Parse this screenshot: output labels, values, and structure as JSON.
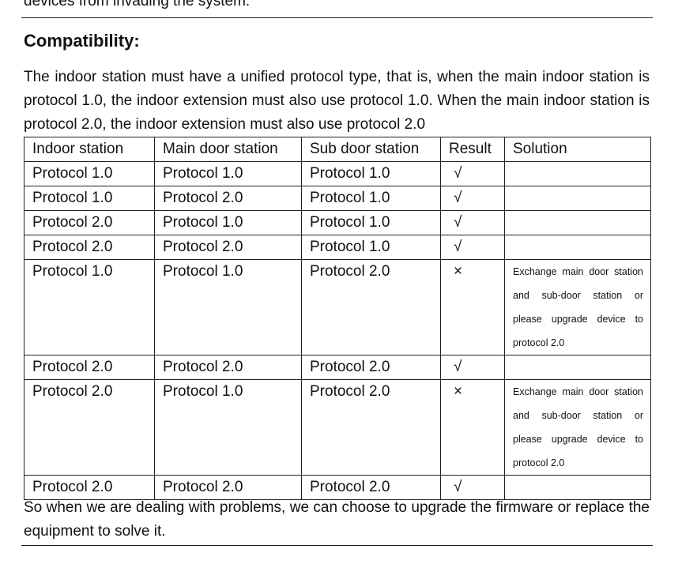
{
  "previous_text": "devices from invading the system.",
  "heading": "Compatibility:",
  "intro": "The indoor station must have a unified protocol type, that is, when the main indoor station is protocol 1.0, the indoor extension must also use protocol 1.0. When the main indoor station is protocol 2.0, the indoor extension must also use protocol 2.0",
  "table": {
    "headers": [
      "Indoor station",
      "Main door station",
      "Sub door station",
      "Result",
      "Solution"
    ],
    "rows": [
      {
        "indoor": "Protocol 1.0",
        "main": "Protocol 1.0",
        "sub": "Protocol 1.0",
        "result": "√",
        "solution": ""
      },
      {
        "indoor": "Protocol 1.0",
        "main": "Protocol 2.0",
        "sub": "Protocol 1.0",
        "result": "√",
        "solution": ""
      },
      {
        "indoor": "Protocol 2.0",
        "main": "Protocol 1.0",
        "sub": "Protocol 1.0",
        "result": "√",
        "solution": ""
      },
      {
        "indoor": "Protocol 2.0",
        "main": "Protocol 2.0",
        "sub": "Protocol 1.0",
        "result": "√",
        "solution": ""
      },
      {
        "indoor": "Protocol 1.0",
        "main": "Protocol 1.0",
        "sub": "Protocol 2.0",
        "result": "×",
        "solution": "Exchange main door station and sub-door station or please upgrade device to protocol 2.0"
      },
      {
        "indoor": "Protocol 2.0",
        "main": "Protocol 2.0",
        "sub": "Protocol 2.0",
        "result": "√",
        "solution": ""
      },
      {
        "indoor": "Protocol 2.0",
        "main": "Protocol 1.0",
        "sub": "Protocol 2.0",
        "result": "×",
        "solution": "Exchange main door station and sub-door station or please upgrade device to protocol 2.0"
      },
      {
        "indoor": "Protocol 2.0",
        "main": "Protocol 2.0",
        "sub": "Protocol 2.0",
        "result": "√",
        "solution": ""
      }
    ]
  },
  "conclusion": "So when we are dealing with problems, we can choose to upgrade the firmware or replace the equipment to solve it."
}
